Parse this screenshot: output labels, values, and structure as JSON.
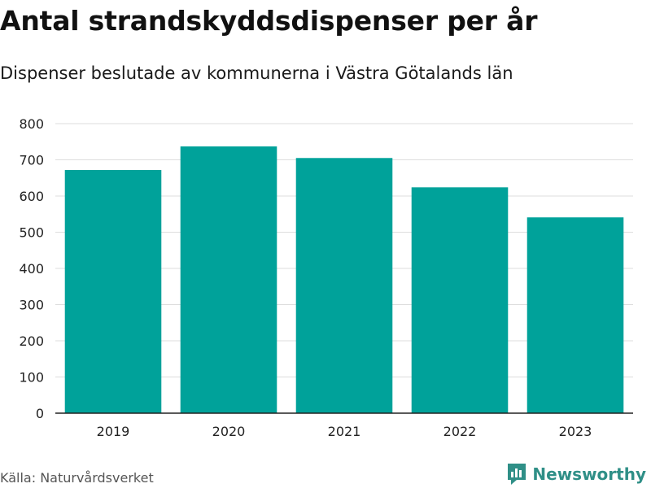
{
  "colors": {
    "bar": "#00a29a",
    "grid": "#dddddd",
    "axis": "#222222",
    "brand": "#2f8f87"
  },
  "brand": {
    "name": "Newsworthy",
    "icon": "bar-chart-logo-icon"
  },
  "source": "Källa: Naturvårdsverket",
  "chart_data": {
    "type": "bar",
    "title": "Antal strandskyddsdispenser per år",
    "subtitle": "Dispenser beslutade av kommunerna i Västra Götalands län",
    "categories": [
      "2019",
      "2020",
      "2021",
      "2022",
      "2023"
    ],
    "values": [
      672,
      737,
      705,
      624,
      541
    ],
    "xlabel": "",
    "ylabel": "",
    "ylim": [
      0,
      800
    ],
    "yticks": [
      0,
      100,
      200,
      300,
      400,
      500,
      600,
      700,
      800
    ],
    "grid": true,
    "legend": "none"
  }
}
